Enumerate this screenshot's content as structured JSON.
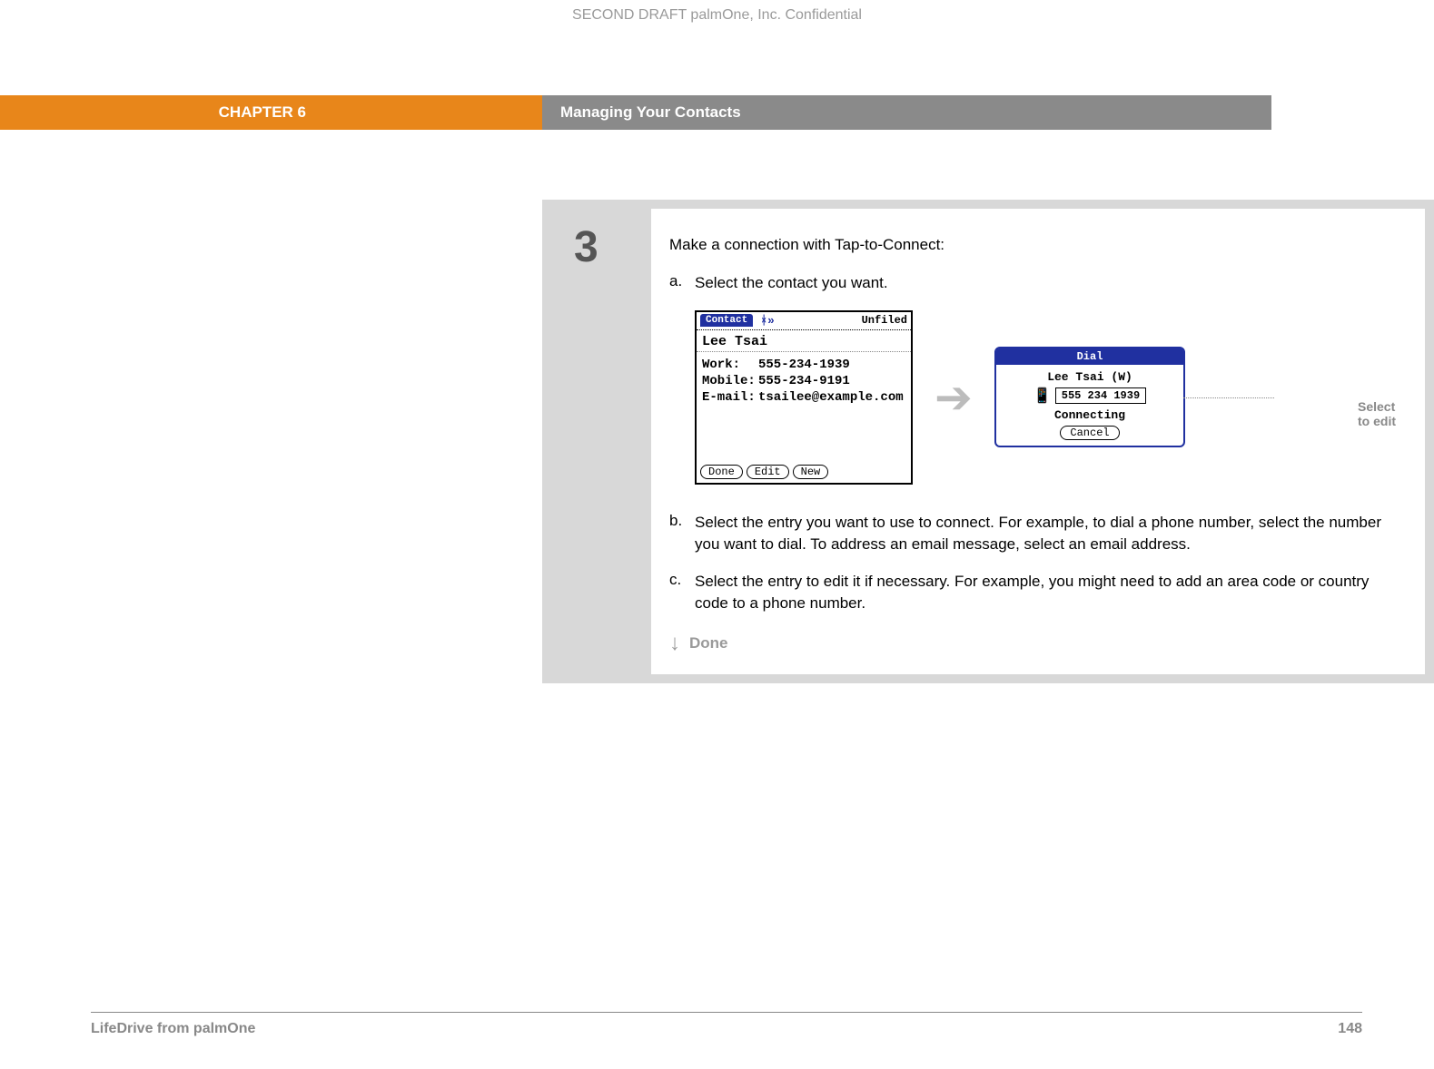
{
  "draft_header": "SECOND DRAFT palmOne, Inc.  Confidential",
  "chapter": {
    "label": "CHAPTER 6",
    "title": "Managing Your Contacts"
  },
  "step": {
    "number": "3",
    "intro": "Make a connection with Tap-to-Connect:",
    "a_letter": "a.",
    "a_text": "Select the contact you want.",
    "b_letter": "b.",
    "b_text": "Select the entry you want to use to connect. For example, to dial a phone number, select the number you want to dial. To address an email message, select an email address.",
    "c_letter": "c.",
    "c_text": "Select the entry to edit it if necessary. For example, you might need to add an area code or country code to a phone number.",
    "done": "Done"
  },
  "contact_screen": {
    "app_title": "Contact",
    "category": "Unfiled",
    "name": "Lee Tsai",
    "rows": [
      {
        "label": "Work:",
        "value": "555-234-1939"
      },
      {
        "label": "Mobile:",
        "value": "555-234-9191"
      },
      {
        "label": "E-mail:",
        "value": "tsailee@example.com"
      }
    ],
    "buttons": [
      "Done",
      "Edit",
      "New"
    ]
  },
  "dial_popup": {
    "title": "Dial",
    "name": "Lee Tsai (W)",
    "number": "555 234 1939",
    "status": "Connecting",
    "cancel": "Cancel"
  },
  "callout": "Select to edit",
  "footer": {
    "product": "LifeDrive from palmOne",
    "page": "148"
  },
  "colors": {
    "orange": "#e8861a",
    "header_gray": "#8a8a8a",
    "bg_gray": "#d8d8d8",
    "muted_text": "#9a9a9a",
    "palm_blue": "#2030a0"
  }
}
